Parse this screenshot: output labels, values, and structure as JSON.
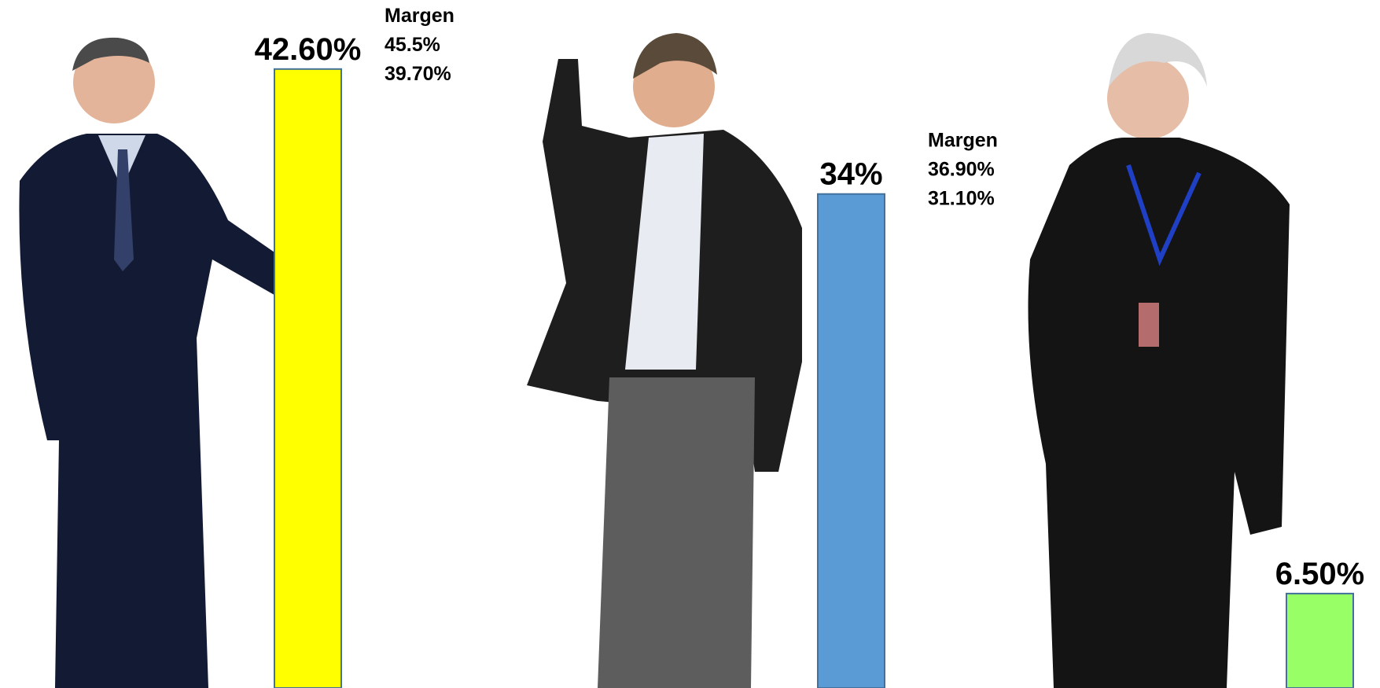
{
  "chart_data": {
    "type": "bar",
    "categories": [
      null,
      null,
      null
    ],
    "values": [
      42.6,
      34,
      6.5
    ],
    "value_labels": [
      "42.60%",
      "34%",
      "6.50%"
    ],
    "colors": [
      "#ffff00",
      "#5b9bd5",
      "#99ff66"
    ],
    "ylim": [
      0,
      46
    ],
    "margins": [
      {
        "title": "Margen",
        "values": [
          45.5,
          39.7
        ],
        "value_labels": [
          "45.5%",
          "39.70%"
        ]
      },
      {
        "title": "Margen",
        "values": [
          36.9,
          31.1
        ],
        "value_labels": [
          "36.90%",
          "31.10%"
        ]
      },
      null
    ]
  }
}
